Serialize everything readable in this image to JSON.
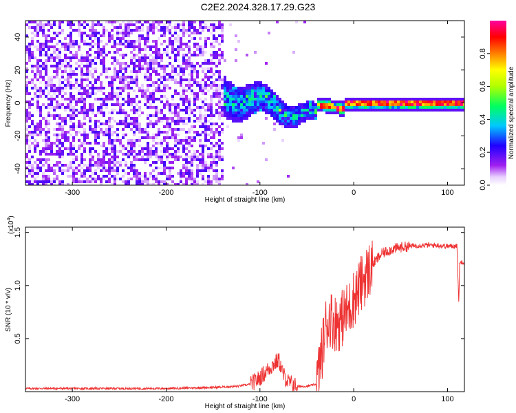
{
  "title": "C2E2.2024.328.17.29.G23",
  "chart_data": [
    {
      "type": "heatmap",
      "xlabel": "Height of straight line (km)",
      "ylabel": "Frequency (Hz)",
      "xlim": [
        -350,
        118
      ],
      "ylim": [
        -50,
        50
      ],
      "xticks": [
        -300,
        -200,
        -100,
        0,
        100
      ],
      "yticks": [
        -40,
        -20,
        0,
        20,
        40
      ],
      "colorbar": {
        "label": "Normalized spectral amplitude",
        "range": [
          0,
          1
        ],
        "ticks": [
          "0.0",
          "0.2",
          "0.4",
          "0.6",
          "0.8"
        ],
        "tick_values": [
          0.0,
          0.2,
          0.4,
          0.6,
          0.8
        ],
        "colors": [
          "#ffffff",
          "#a020f0",
          "#0000ff",
          "#00ffff",
          "#00ff00",
          "#ffff00",
          "#ff8000",
          "#ff0000",
          "#ff00ff"
        ]
      },
      "regions": [
        {
          "x_range": [
            -350,
            -140
          ],
          "freq_range": [
            -50,
            50
          ],
          "amplitude": "0.05-0.25 noise"
        },
        {
          "x_range": [
            -140,
            -40
          ],
          "center_freq_hz": [
            6,
            -8
          ],
          "half_width_hz": [
            12,
            5
          ],
          "amplitude": "0.2-0.5"
        },
        {
          "x_range": [
            -40,
            118
          ],
          "center_freq_hz": 0,
          "half_width_hz": 2,
          "amplitude": "0.6-1.0"
        }
      ]
    },
    {
      "type": "line",
      "xlabel": "Height of straight line (km)",
      "ylabel": "SNR (10 * v/v)",
      "yscale_label": "(x10",
      "yscale_exp": "4",
      "yscale_close": ")",
      "xlim": [
        -350,
        118
      ],
      "ylim": [
        0,
        1.55
      ],
      "xticks": [
        -300,
        -200,
        -100,
        0,
        100
      ],
      "yticks": [
        "0.5",
        "1.0",
        "1.5"
      ],
      "ytick_values": [
        0.5,
        1.0,
        1.5
      ],
      "color": "#ee3333",
      "series": [
        {
          "x": [
            -350,
            -300,
            -250,
            -200,
            -150,
            -125,
            -110,
            -100,
            -90,
            -80,
            -75,
            -70,
            -60,
            -50,
            -40,
            -35,
            -30,
            -25,
            -20,
            -15,
            -10,
            -5,
            0,
            5,
            10,
            20,
            30,
            40,
            50,
            60,
            70,
            80,
            90,
            100,
            105,
            110,
            112,
            113,
            115,
            118
          ],
          "y": [
            0.03,
            0.03,
            0.03,
            0.03,
            0.04,
            0.05,
            0.07,
            0.13,
            0.22,
            0.3,
            0.16,
            0.09,
            0.05,
            0.05,
            0.07,
            0.3,
            0.62,
            0.7,
            0.65,
            0.66,
            0.72,
            0.78,
            0.88,
            0.96,
            1.05,
            1.2,
            1.3,
            1.34,
            1.36,
            1.37,
            1.38,
            1.38,
            1.38,
            1.37,
            1.37,
            1.38,
            0.85,
            1.2,
            1.23,
            1.22
          ]
        }
      ]
    }
  ]
}
